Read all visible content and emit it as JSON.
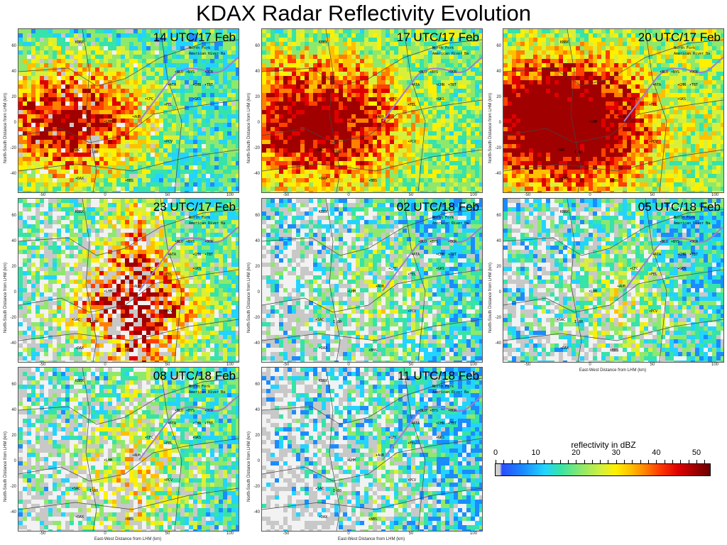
{
  "title": "KDAX Radar Reflectivity Evolution",
  "panels": [
    {
      "time": "14 UTC/17 Feb",
      "intensity": 0.45,
      "west_core": 0.9,
      "east_core": 0.0,
      "clear_frac": 0.05
    },
    {
      "time": "17 UTC/17 Feb",
      "intensity": 0.55,
      "west_core": 0.85,
      "east_core": 0.1,
      "clear_frac": 0.0
    },
    {
      "time": "20 UTC/17 Feb",
      "intensity": 0.6,
      "west_core": 0.95,
      "east_core": 0.2,
      "clear_frac": 0.0
    },
    {
      "time": "23 UTC/17 Feb",
      "intensity": 0.5,
      "west_core": 0.0,
      "east_core": 0.95,
      "clear_frac": 0.35
    },
    {
      "time": "02 UTC/18 Feb",
      "intensity": 0.4,
      "west_core": 0.0,
      "east_core": 0.3,
      "clear_frac": 0.45
    },
    {
      "time": "05 UTC/18 Feb",
      "intensity": 0.4,
      "west_core": 0.0,
      "east_core": 0.35,
      "clear_frac": 0.4
    },
    {
      "time": "08 UTC/18 Feb",
      "intensity": 0.45,
      "west_core": 0.0,
      "east_core": 0.45,
      "clear_frac": 0.45
    },
    {
      "time": "11 UTC/18 Feb",
      "intensity": 0.35,
      "west_core": 0.0,
      "east_core": 0.25,
      "clear_frac": 0.55
    }
  ],
  "map_labels": [
    "KBBX",
    "North Fork",
    "American River Ba",
    "BLU",
    "ATA",
    "CFC",
    "FEL",
    "GKS",
    "CHN",
    "TBT",
    "BYS",
    "OCR",
    "AUB",
    "LHM",
    "PCV",
    "I-80",
    "SAC",
    "DAX",
    "BBS"
  ],
  "axes": {
    "ylabel": "North-South Distance from LHM (km)",
    "xlabel": "East-West Distance from LHM (km)",
    "yticks": [
      "60",
      "40",
      "20",
      "0",
      "-20",
      "-40"
    ],
    "xticks": [
      "-50",
      "0",
      "50",
      "100"
    ]
  },
  "colorbar": {
    "title": "reflectivity in dBZ",
    "ticks": [
      "0",
      "10",
      "20",
      "30",
      "40",
      "50"
    ],
    "range": [
      0,
      53
    ]
  },
  "colors": {
    "clear": "#f2f2f2",
    "gray_echo": "#c8c8c8",
    "low": "#1a8cff",
    "mid": "#8ee86c",
    "high": "#ff8000",
    "max": "#a00000",
    "river": "#9a7fd0",
    "border": "#444444"
  }
}
